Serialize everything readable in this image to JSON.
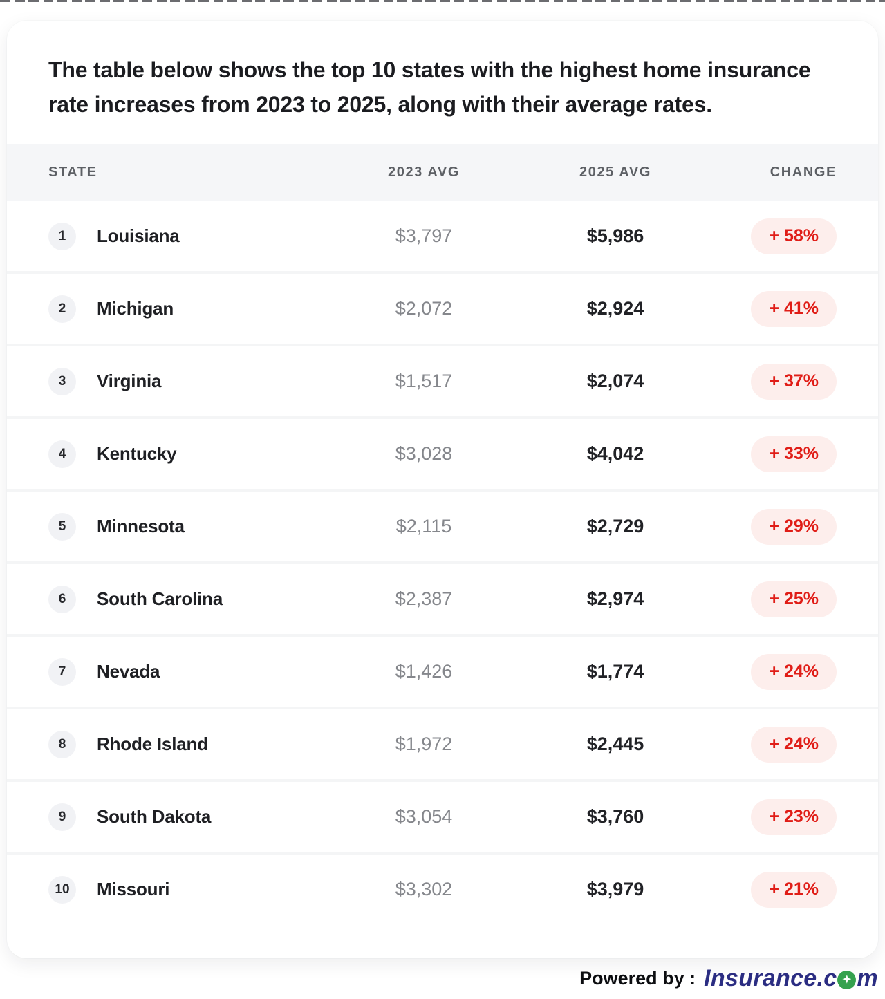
{
  "title": "The table below shows the top 10 states with the highest home insurance rate increases from 2023 to 2025, along with their average rates.",
  "table": {
    "columns": [
      "STATE",
      "2023 AVG",
      "2025 AVG",
      "CHANGE"
    ],
    "rows": [
      {
        "rank": "1",
        "state": "Louisiana",
        "avg_2023": "$3,797",
        "avg_2025": "$5,986",
        "change": "+ 58%"
      },
      {
        "rank": "2",
        "state": "Michigan",
        "avg_2023": "$2,072",
        "avg_2025": "$2,924",
        "change": "+ 41%"
      },
      {
        "rank": "3",
        "state": "Virginia",
        "avg_2023": "$1,517",
        "avg_2025": "$2,074",
        "change": "+ 37%"
      },
      {
        "rank": "4",
        "state": "Kentucky",
        "avg_2023": "$3,028",
        "avg_2025": "$4,042",
        "change": "+ 33%"
      },
      {
        "rank": "5",
        "state": "Minnesota",
        "avg_2023": "$2,115",
        "avg_2025": "$2,729",
        "change": "+ 29%"
      },
      {
        "rank": "6",
        "state": "South Carolina",
        "avg_2023": "$2,387",
        "avg_2025": "$2,974",
        "change": "+ 25%"
      },
      {
        "rank": "7",
        "state": "Nevada",
        "avg_2023": "$1,426",
        "avg_2025": "$1,774",
        "change": "+ 24%"
      },
      {
        "rank": "8",
        "state": "Rhode Island",
        "avg_2023": "$1,972",
        "avg_2025": "$2,445",
        "change": "+ 24%"
      },
      {
        "rank": "9",
        "state": "South Dakota",
        "avg_2023": "$3,054",
        "avg_2025": "$3,760",
        "change": "+ 23%"
      },
      {
        "rank": "10",
        "state": "Missouri",
        "avg_2023": "$3,302",
        "avg_2025": "$3,979",
        "change": "+ 21%"
      }
    ]
  },
  "footer": {
    "powered_by": "Powered by :",
    "brand_pre": "Insurance.c",
    "brand_suffix": "m",
    "brand_full": "Insurance.com",
    "brand_o_glyph": "✦"
  },
  "colors": {
    "badge_bg": "#fdeeec",
    "badge_text": "#e01d17",
    "brand_navy": "#2b2d82",
    "brand_green": "#35a14e",
    "header_bg": "#f5f6f8"
  },
  "chart_data": {
    "type": "table",
    "title": "Top 10 states with the highest home insurance rate increases from 2023 to 2025",
    "columns": [
      "STATE",
      "2023 AVG",
      "2025 AVG",
      "CHANGE"
    ],
    "rows": [
      [
        "Louisiana",
        3797,
        5986,
        "+58%"
      ],
      [
        "Michigan",
        2072,
        2924,
        "+41%"
      ],
      [
        "Virginia",
        1517,
        2074,
        "+37%"
      ],
      [
        "Kentucky",
        3028,
        4042,
        "+33%"
      ],
      [
        "Minnesota",
        2115,
        2729,
        "+29%"
      ],
      [
        "South Carolina",
        2387,
        2974,
        "+25%"
      ],
      [
        "Nevada",
        1426,
        1774,
        "+24%"
      ],
      [
        "Rhode Island",
        1972,
        2445,
        "+24%"
      ],
      [
        "South Dakota",
        3054,
        3760,
        "+23%"
      ],
      [
        "Missouri",
        3302,
        3979,
        "+21%"
      ]
    ]
  }
}
